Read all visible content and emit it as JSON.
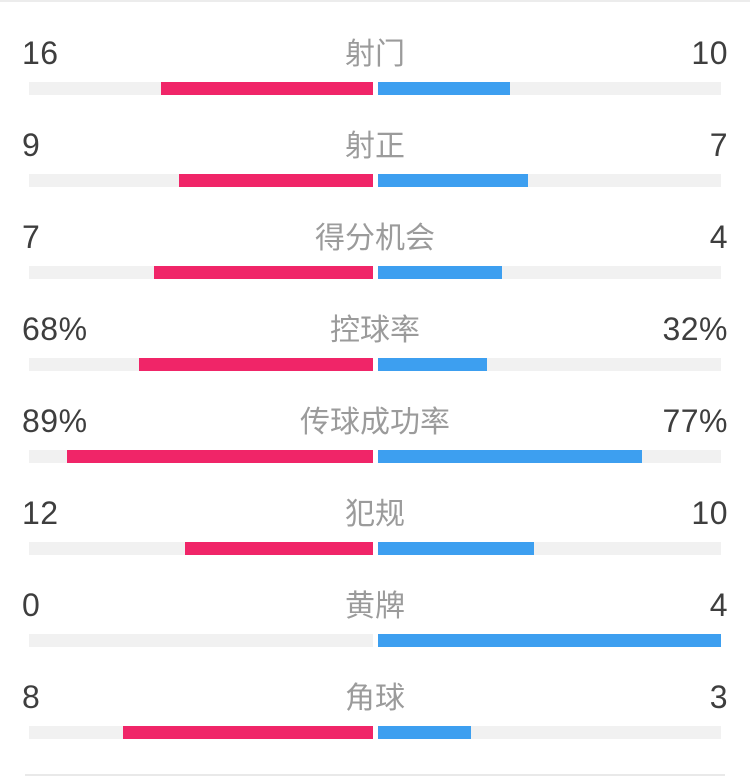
{
  "page": {
    "background": "#ffffff",
    "top_border_color": "#ECECEC",
    "divider_color": "#E9E9E9"
  },
  "colors": {
    "home_bar": "#F02568",
    "away_bar": "#3D9FF0",
    "track": "#F1F1F1",
    "stat_label_text": "#9B9B9B",
    "value_text": "#3E3E3E"
  },
  "chart_data": {
    "type": "bar",
    "orientation": "horizontal-mirrored-from-center",
    "legend": "none",
    "grid": "off",
    "categories": [
      "射门",
      "射正",
      "得分机会",
      "控球率",
      "传球成功率",
      "犯规",
      "黄牌",
      "角球"
    ],
    "series": [
      {
        "name": "left-team",
        "color": "#F02568",
        "values": [
          "16",
          "9",
          "7",
          "68%",
          "89%",
          "12",
          "0",
          "8"
        ]
      },
      {
        "name": "right-team",
        "color": "#3D9FF0",
        "values": [
          "10",
          "7",
          "4",
          "32%",
          "77%",
          "10",
          "4",
          "3"
        ]
      }
    ],
    "bar_scale_rule": "count rows: width = value/(left+right) of half-track; percent rows: width = value/100 of half-track",
    "track_color": "#F1F1F1"
  }
}
